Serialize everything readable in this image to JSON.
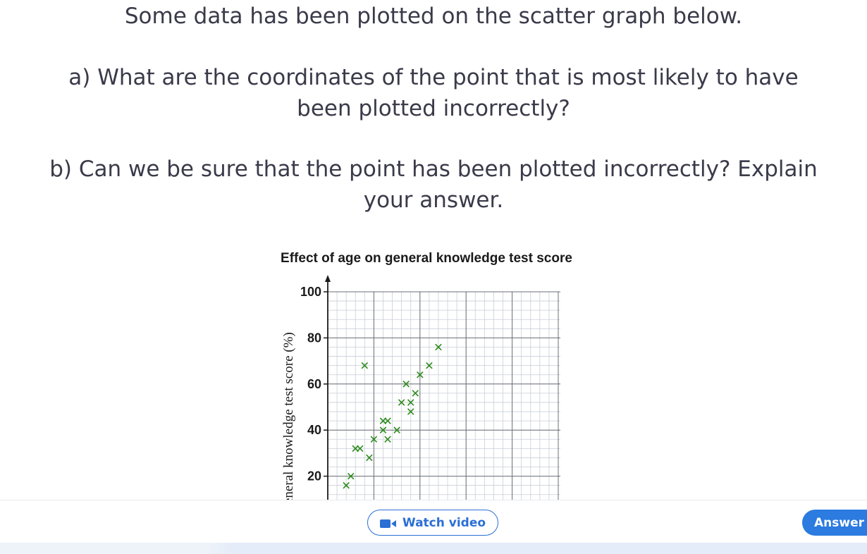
{
  "question": {
    "intro": "Some data has been plotted on the scatter graph below.",
    "part_a_line1": "a) What are the coordinates of the point that is most likely to have",
    "part_a_line2": "been plotted incorrectly?",
    "part_b_line1": "b) Can we be sure that the point has been plotted incorrectly? Explain",
    "part_b_line2": "your answer."
  },
  "chart_data": {
    "type": "scatter",
    "title": "Effect of age on general knowledge test score",
    "ylabel": "General knowledge test score (%)",
    "xlabel": "",
    "ylim": [
      0,
      100
    ],
    "xlim": [
      0,
      50
    ],
    "y_ticks": [
      "20",
      "40",
      "60",
      "80",
      "100"
    ],
    "grid": true,
    "marker": "x",
    "marker_color": "#2e8b1e",
    "points": [
      {
        "x": 4,
        "y": 16
      },
      {
        "x": 5,
        "y": 20
      },
      {
        "x": 6,
        "y": 32
      },
      {
        "x": 7,
        "y": 32
      },
      {
        "x": 8,
        "y": 68
      },
      {
        "x": 9,
        "y": 28
      },
      {
        "x": 10,
        "y": 36
      },
      {
        "x": 12,
        "y": 40
      },
      {
        "x": 12,
        "y": 44
      },
      {
        "x": 13,
        "y": 44
      },
      {
        "x": 13,
        "y": 36
      },
      {
        "x": 15,
        "y": 40
      },
      {
        "x": 16,
        "y": 52
      },
      {
        "x": 17,
        "y": 60
      },
      {
        "x": 18,
        "y": 52
      },
      {
        "x": 18,
        "y": 48
      },
      {
        "x": 19,
        "y": 56
      },
      {
        "x": 20,
        "y": 64
      },
      {
        "x": 22,
        "y": 68
      },
      {
        "x": 24,
        "y": 76
      }
    ]
  },
  "toolbar": {
    "watch_video_label": "Watch video",
    "answer_label": "Answer",
    "accent_color": "#2b7be0"
  },
  "icons": {
    "video": "video-camera-icon"
  }
}
